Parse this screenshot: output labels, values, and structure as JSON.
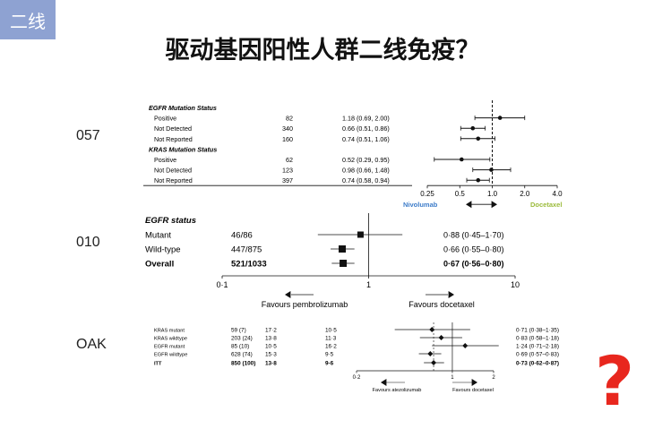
{
  "badge": "二线",
  "title": "驱动基因阳性人群二线免疫？",
  "question_mark": "?",
  "colors": {
    "badge_bg": "#8ea2d2",
    "question_mark": "#e8271e",
    "nivolumab_label": "#3d7cc9",
    "docetaxel_label": "#9bbb3b"
  },
  "trials": {
    "t057": "057",
    "t010": "010",
    "oak": "OAK"
  },
  "chart_data": [
    {
      "type": "forest",
      "trial": "057",
      "groups": [
        {
          "header": "EGFR Mutation Status",
          "rows": [
            {
              "label": "Positive",
              "n": "82",
              "ci": "1.18 (0.69, 2.00)",
              "hr": 1.18,
              "lo": 0.69,
              "hi": 2.0
            },
            {
              "label": "Not Detected",
              "n": "340",
              "ci": "0.66 (0.51, 0.86)",
              "hr": 0.66,
              "lo": 0.51,
              "hi": 0.86
            },
            {
              "label": "Not Reported",
              "n": "160",
              "ci": "0.74 (0.51, 1.06)",
              "hr": 0.74,
              "lo": 0.51,
              "hi": 1.06
            }
          ]
        },
        {
          "header": "KRAS Mutation Status",
          "rows": [
            {
              "label": "Positive",
              "n": "62",
              "ci": "0.52 (0.29, 0.95)",
              "hr": 0.52,
              "lo": 0.29,
              "hi": 0.95
            },
            {
              "label": "Not Detected",
              "n": "123",
              "ci": "0.98 (0.66, 1.48)",
              "hr": 0.98,
              "lo": 0.66,
              "hi": 1.48
            },
            {
              "label": "Not Reported",
              "n": "397",
              "ci": "0.74 (0.58, 0.94)",
              "hr": 0.74,
              "lo": 0.58,
              "hi": 0.94
            }
          ]
        }
      ],
      "xscale": "log",
      "xlim": [
        0.25,
        4.0
      ],
      "xticks": [
        "0.25",
        "0.5",
        "1.0",
        "2.0",
        "4.0"
      ],
      "favours_left": "Nivolumab",
      "favours_right": "Docetaxel"
    },
    {
      "type": "forest",
      "trial": "010",
      "header": "EGFR status",
      "rows": [
        {
          "label": "Mutant",
          "n": "46/86",
          "ci": "0·88 (0·45–1·70)",
          "hr": 0.88,
          "lo": 0.45,
          "hi": 1.7,
          "bold": false
        },
        {
          "label": "Wild-type",
          "n": "447/875",
          "ci": "0·66 (0·55–0·80)",
          "hr": 0.66,
          "lo": 0.55,
          "hi": 0.8,
          "bold": false
        },
        {
          "label": "Overall",
          "n": "521/1033",
          "ci": "0·67 (0·56–0·80)",
          "hr": 0.67,
          "lo": 0.56,
          "hi": 0.8,
          "bold": true
        }
      ],
      "xscale": "log",
      "xlim": [
        0.1,
        10
      ],
      "xticks": [
        "0·1",
        "1",
        "10"
      ],
      "favours_left": "Favours pembrolizumab",
      "favours_right": "Favours docetaxel"
    },
    {
      "type": "forest",
      "trial": "OAK",
      "rows": [
        {
          "label": "KRAS mutant",
          "n": "59 (7)",
          "m1": "17·2",
          "m2": "10·5",
          "ci": "0·71 (0·38–1·35)",
          "hr": 0.71,
          "lo": 0.38,
          "hi": 1.35,
          "bold": false
        },
        {
          "label": "KRAS wildtype",
          "n": "203 (24)",
          "m1": "13·8",
          "m2": "11·3",
          "ci": "0·83 (0·58–1·18)",
          "hr": 0.83,
          "lo": 0.58,
          "hi": 1.18,
          "bold": false
        },
        {
          "label": "EGFR mutant",
          "n": "85 (10)",
          "m1": "10·5",
          "m2": "16·2",
          "ci": "1·24 (0·71–2·18)",
          "hr": 1.24,
          "lo": 0.71,
          "hi": 2.18,
          "bold": false
        },
        {
          "label": "EGFR wildtype",
          "n": "628 (74)",
          "m1": "15·3",
          "m2": "9·5",
          "ci": "0·69 (0·57–0·83)",
          "hr": 0.69,
          "lo": 0.57,
          "hi": 0.83,
          "bold": false
        },
        {
          "label": "ITT",
          "n": "850 (100)",
          "m1": "13·8",
          "m2": "9·6",
          "ci": "0·73 (0·62–0·87)",
          "hr": 0.73,
          "lo": 0.62,
          "hi": 0.87,
          "bold": true
        }
      ],
      "xscale": "log",
      "xlim": [
        0.2,
        2
      ],
      "xticks": [
        "0·2",
        "1",
        "2"
      ],
      "favours_left": "Favours atezolizumab",
      "favours_right": "Favours docetaxel"
    }
  ]
}
